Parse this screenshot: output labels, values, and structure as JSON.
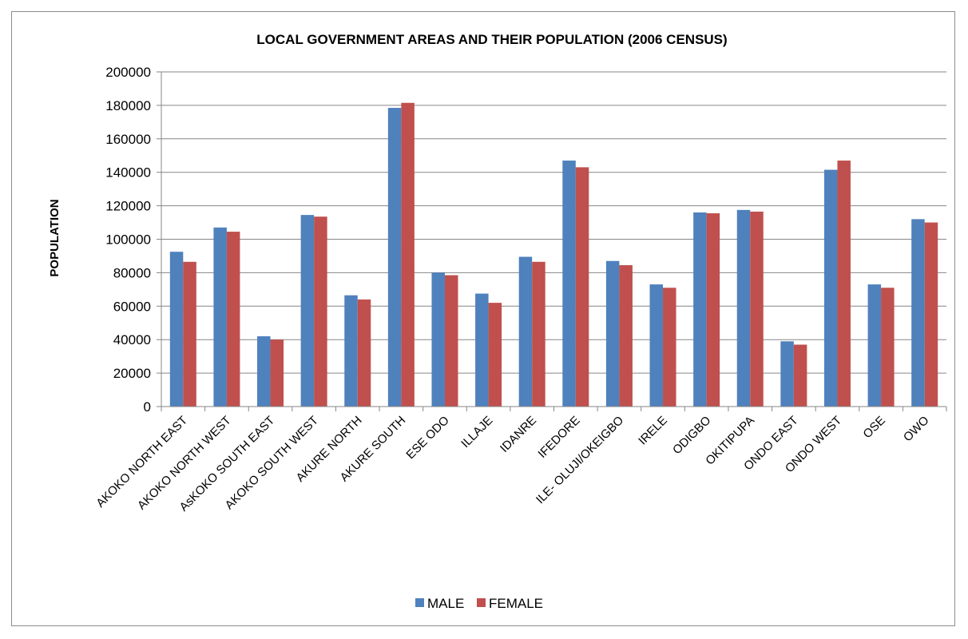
{
  "chart_data": {
    "type": "bar",
    "title": "LOCAL GOVERNMENT AREAS AND THEIR POPULATION (2006 CENSUS)",
    "xlabel": "",
    "ylabel": "POPULATION",
    "ylim": [
      0,
      200000
    ],
    "yticks": [
      0,
      20000,
      40000,
      60000,
      80000,
      100000,
      120000,
      140000,
      160000,
      180000,
      200000
    ],
    "grid": true,
    "legend_position": "bottom",
    "categories": [
      "AKOKO NORTH EAST",
      "AKOKO NORTH WEST",
      "AsKOKO SOUTH EAST",
      "AKOKO SOUTH WEST",
      "AKURE NORTH",
      "AKURE SOUTH",
      "ESE ODO",
      "ILLAJE",
      "IDANRE",
      "IFEDORE",
      "ILE- OLUJI/OKEIGBO",
      "IRELE",
      "ODIGBO",
      "OKITIPUPA",
      "ONDO EAST",
      "ONDO WEST",
      "OSE",
      "OWO"
    ],
    "series": [
      {
        "name": "MALE",
        "color": "#4f81bd",
        "values": [
          92500,
          107000,
          42000,
          114500,
          66500,
          178500,
          80000,
          67500,
          89500,
          147000,
          87000,
          73000,
          116000,
          117500,
          39000,
          141500,
          73000,
          112000
        ]
      },
      {
        "name": "FEMALE",
        "color": "#c0504d",
        "values": [
          86500,
          104500,
          40000,
          113500,
          64000,
          181500,
          78500,
          62000,
          86500,
          143000,
          84500,
          71000,
          115500,
          116500,
          37000,
          147000,
          71000,
          110000
        ]
      }
    ]
  }
}
